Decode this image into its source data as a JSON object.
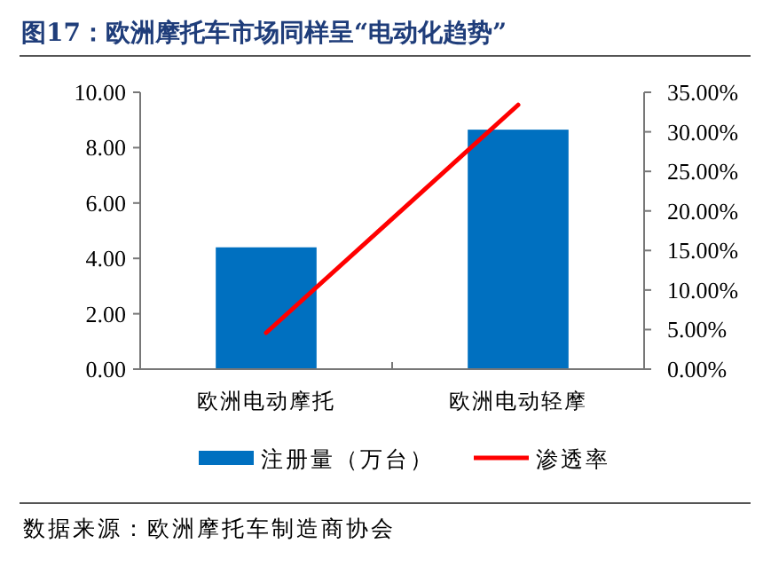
{
  "chart_data": {
    "type": "bar",
    "title": "图17：欧洲摩托车市场同样呈“电动化趋势”",
    "categories": [
      "欧洲电动摩托",
      "欧洲电动轻摩"
    ],
    "series": [
      {
        "name": "注册量（万台）",
        "color": "#0070c0",
        "values": [
          4.4,
          8.65
        ]
      },
      {
        "name": "渗透率",
        "type": "line",
        "axis": "y2",
        "color": "#ff0000",
        "values": [
          4.6,
          33.4
        ]
      }
    ],
    "ylim": [
      0,
      10
    ],
    "yticks": [
      {
        "value": 0,
        "label": "0.00"
      },
      {
        "value": 2,
        "label": "2.00"
      },
      {
        "value": 4,
        "label": "4.00"
      },
      {
        "value": 6,
        "label": "6.00"
      },
      {
        "value": 8,
        "label": "8.00"
      },
      {
        "value": 10,
        "label": "10.00"
      }
    ],
    "y2lim": [
      0,
      35
    ],
    "y2ticks": [
      {
        "value": 0,
        "label": "0.00%"
      },
      {
        "value": 5,
        "label": "5.00%"
      },
      {
        "value": 10,
        "label": "10.00%"
      },
      {
        "value": 15,
        "label": "15.00%"
      },
      {
        "value": 20,
        "label": "20.00%"
      },
      {
        "value": 25,
        "label": "25.00%"
      },
      {
        "value": 30,
        "label": "30.00%"
      },
      {
        "value": 35,
        "label": "35.00%"
      }
    ],
    "grid": false,
    "legend": "bottom",
    "marker": "none",
    "line_style": "solid",
    "annotations": [
      "数据来源：欧洲摩托车制造商协会"
    ]
  }
}
